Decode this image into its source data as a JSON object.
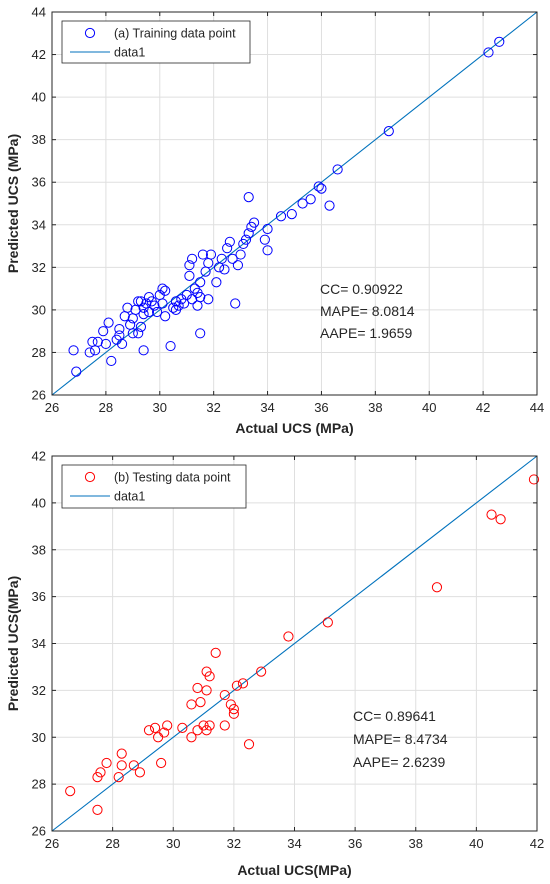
{
  "chart_data": [
    {
      "type": "scatter",
      "xlabel": "Actual UCS (MPa)",
      "ylabel": "Predicted UCS (MPa)",
      "xlim": [
        26,
        44
      ],
      "ylim": [
        26,
        44
      ],
      "xticks": [
        26,
        28,
        30,
        32,
        34,
        36,
        38,
        40,
        42,
        44
      ],
      "yticks": [
        26,
        28,
        30,
        32,
        34,
        36,
        38,
        40,
        42,
        44
      ],
      "grid": true,
      "legend_position": "top-left",
      "legend": [
        "(a) Training data point",
        "data1"
      ],
      "annotations": [
        "CC= 0.90922",
        "MAPE= 8.0814",
        "AAPE= 1.9659"
      ],
      "series": [
        {
          "name": "(a) Training data point",
          "kind": "scatter",
          "marker": "circle",
          "color": "#0000ff",
          "points": [
            [
              26.8,
              28.1
            ],
            [
              26.9,
              27.1
            ],
            [
              27.4,
              28.0
            ],
            [
              27.5,
              28.5
            ],
            [
              27.6,
              28.1
            ],
            [
              27.7,
              28.5
            ],
            [
              27.9,
              29.0
            ],
            [
              28.0,
              28.4
            ],
            [
              28.1,
              29.4
            ],
            [
              28.2,
              27.6
            ],
            [
              28.4,
              28.6
            ],
            [
              28.5,
              29.1
            ],
            [
              28.5,
              28.8
            ],
            [
              28.6,
              28.4
            ],
            [
              28.7,
              29.7
            ],
            [
              28.8,
              30.1
            ],
            [
              28.9,
              29.3
            ],
            [
              29.0,
              28.9
            ],
            [
              29.0,
              29.6
            ],
            [
              29.1,
              30.0
            ],
            [
              29.2,
              30.4
            ],
            [
              29.2,
              28.9
            ],
            [
              29.3,
              29.2
            ],
            [
              29.3,
              30.4
            ],
            [
              29.4,
              29.8
            ],
            [
              29.4,
              28.1
            ],
            [
              29.4,
              30.1
            ],
            [
              29.5,
              30.3
            ],
            [
              29.6,
              30.6
            ],
            [
              29.6,
              29.9
            ],
            [
              29.7,
              30.4
            ],
            [
              29.8,
              30.2
            ],
            [
              29.9,
              29.9
            ],
            [
              30.0,
              30.7
            ],
            [
              30.1,
              30.3
            ],
            [
              30.1,
              31.0
            ],
            [
              30.2,
              30.9
            ],
            [
              30.2,
              29.7
            ],
            [
              30.4,
              28.3
            ],
            [
              30.5,
              30.1
            ],
            [
              30.6,
              30.4
            ],
            [
              30.6,
              30.0
            ],
            [
              30.7,
              30.2
            ],
            [
              30.8,
              30.5
            ],
            [
              30.9,
              30.3
            ],
            [
              31.0,
              30.7
            ],
            [
              31.1,
              31.6
            ],
            [
              31.1,
              32.1
            ],
            [
              31.2,
              30.5
            ],
            [
              31.2,
              32.4
            ],
            [
              31.3,
              31.0
            ],
            [
              31.4,
              30.8
            ],
            [
              31.4,
              30.2
            ],
            [
              31.5,
              31.3
            ],
            [
              31.5,
              30.6
            ],
            [
              31.6,
              32.6
            ],
            [
              31.7,
              31.8
            ],
            [
              31.8,
              32.2
            ],
            [
              31.8,
              30.5
            ],
            [
              31.9,
              32.6
            ],
            [
              31.5,
              28.9
            ],
            [
              32.1,
              31.3
            ],
            [
              32.2,
              32.0
            ],
            [
              32.3,
              32.4
            ],
            [
              32.4,
              31.9
            ],
            [
              32.5,
              32.9
            ],
            [
              32.6,
              33.2
            ],
            [
              32.7,
              32.4
            ],
            [
              32.8,
              30.3
            ],
            [
              32.9,
              32.1
            ],
            [
              33.0,
              32.6
            ],
            [
              33.1,
              33.1
            ],
            [
              33.2,
              33.3
            ],
            [
              33.3,
              33.6
            ],
            [
              33.3,
              35.3
            ],
            [
              33.4,
              33.9
            ],
            [
              33.5,
              34.1
            ],
            [
              33.9,
              33.3
            ],
            [
              34.0,
              33.8
            ],
            [
              34.0,
              32.8
            ],
            [
              34.5,
              34.4
            ],
            [
              34.9,
              34.5
            ],
            [
              35.3,
              35.0
            ],
            [
              35.6,
              35.2
            ],
            [
              35.9,
              35.8
            ],
            [
              36.0,
              35.7
            ],
            [
              36.3,
              34.9
            ],
            [
              36.6,
              36.6
            ],
            [
              38.5,
              38.4
            ],
            [
              42.2,
              42.1
            ],
            [
              42.6,
              42.6
            ]
          ]
        },
        {
          "name": "data1",
          "kind": "line",
          "color": "#0072bd",
          "x": [
            26,
            44
          ],
          "y": [
            26,
            44
          ]
        }
      ]
    },
    {
      "type": "scatter",
      "xlabel": "Actual UCS(MPa)",
      "ylabel": "Predicted UCS(MPa)",
      "xlim": [
        26,
        42
      ],
      "ylim": [
        26,
        42
      ],
      "xticks": [
        26,
        28,
        30,
        32,
        34,
        36,
        38,
        40,
        42
      ],
      "yticks": [
        26,
        28,
        30,
        32,
        34,
        36,
        38,
        40,
        42
      ],
      "grid": true,
      "legend_position": "top-left",
      "legend": [
        "(b) Testing data point",
        "data1"
      ],
      "annotations": [
        "CC= 0.89641",
        "MAPE= 8.4734",
        "AAPE= 2.6239"
      ],
      "series": [
        {
          "name": "(b) Testing data point",
          "kind": "scatter",
          "marker": "circle",
          "color": "#ff0000",
          "points": [
            [
              26.6,
              27.7
            ],
            [
              27.5,
              26.9
            ],
            [
              27.5,
              28.3
            ],
            [
              27.6,
              28.5
            ],
            [
              27.8,
              28.9
            ],
            [
              28.2,
              28.3
            ],
            [
              28.3,
              28.8
            ],
            [
              28.3,
              29.3
            ],
            [
              28.7,
              28.8
            ],
            [
              28.9,
              28.5
            ],
            [
              29.2,
              30.3
            ],
            [
              29.4,
              30.4
            ],
            [
              29.5,
              30.0
            ],
            [
              29.6,
              28.9
            ],
            [
              29.7,
              30.2
            ],
            [
              29.8,
              30.5
            ],
            [
              30.3,
              30.4
            ],
            [
              30.6,
              30.0
            ],
            [
              30.6,
              31.4
            ],
            [
              30.8,
              32.1
            ],
            [
              30.8,
              30.3
            ],
            [
              30.9,
              31.5
            ],
            [
              31.0,
              30.5
            ],
            [
              31.1,
              30.3
            ],
            [
              31.1,
              32.0
            ],
            [
              31.1,
              32.8
            ],
            [
              31.2,
              32.6
            ],
            [
              31.2,
              30.5
            ],
            [
              31.4,
              33.6
            ],
            [
              31.7,
              31.8
            ],
            [
              31.7,
              30.5
            ],
            [
              31.9,
              31.4
            ],
            [
              32.0,
              31.2
            ],
            [
              32.0,
              31.0
            ],
            [
              32.1,
              32.2
            ],
            [
              32.3,
              32.3
            ],
            [
              32.5,
              29.7
            ],
            [
              32.9,
              32.8
            ],
            [
              33.8,
              34.3
            ],
            [
              35.1,
              34.9
            ],
            [
              38.7,
              36.4
            ],
            [
              40.5,
              39.5
            ],
            [
              40.8,
              39.3
            ],
            [
              41.9,
              41.0
            ]
          ]
        },
        {
          "name": "data1",
          "kind": "line",
          "color": "#0072bd",
          "x": [
            26,
            42
          ],
          "y": [
            26,
            42
          ]
        }
      ]
    }
  ]
}
